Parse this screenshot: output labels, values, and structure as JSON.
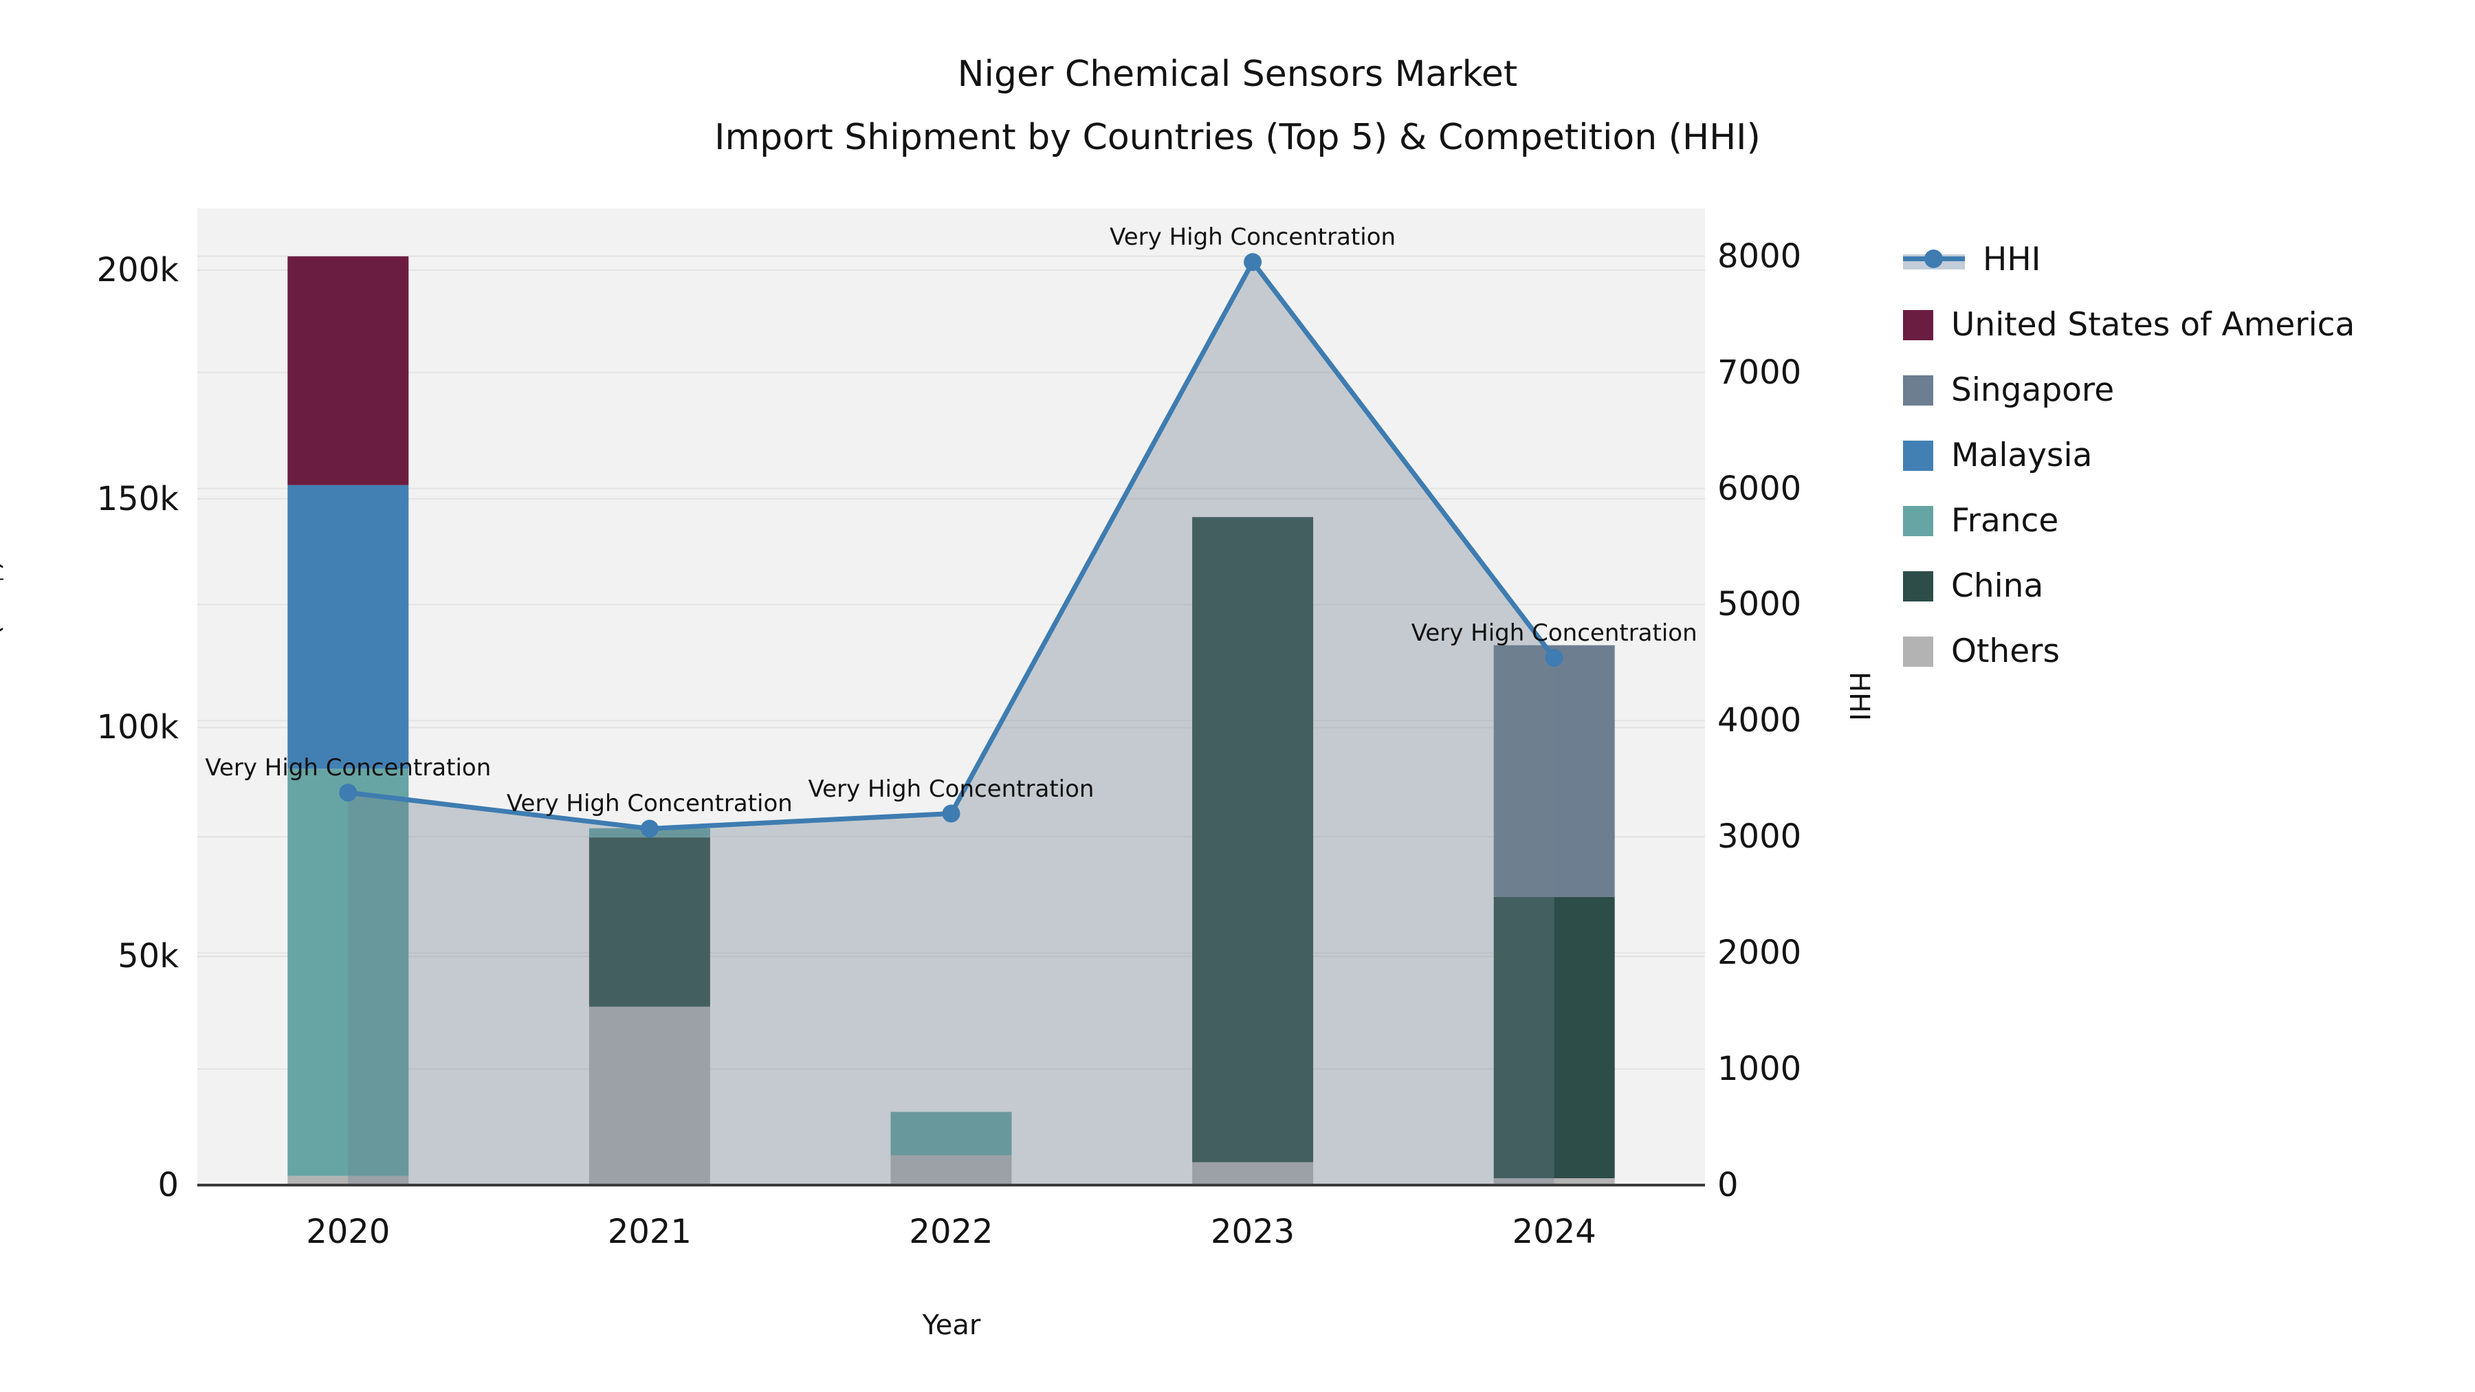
{
  "title": {
    "line1": "Niger Chemical Sensors Market",
    "line2": "Import Shipment by Countries (Top 5) & Competition (HHI)"
  },
  "axes": {
    "x": {
      "label": "Year",
      "ticks": [
        "2020",
        "2021",
        "2022",
        "2023",
        "2024"
      ]
    },
    "y_left": {
      "label": "TRADE VALUE (US$)",
      "ticks": [
        "0",
        "50k",
        "100k",
        "150k",
        "200k"
      ],
      "tick_values": [
        0,
        50000,
        100000,
        150000,
        200000
      ],
      "range": [
        0,
        213500
      ]
    },
    "y_right": {
      "label": "HHI",
      "ticks": [
        "0",
        "1000",
        "2000",
        "3000",
        "4000",
        "5000",
        "6000",
        "7000",
        "8000"
      ],
      "tick_values": [
        0,
        1000,
        2000,
        3000,
        4000,
        5000,
        6000,
        7000,
        8000
      ],
      "range": [
        0,
        8413
      ]
    }
  },
  "legend": [
    {
      "label": "HHI",
      "type": "line",
      "color": "#3e7cb1"
    },
    {
      "label": "United States of America",
      "type": "box",
      "color": "#6b1d41"
    },
    {
      "label": "Singapore",
      "type": "box",
      "color": "#6e7e91"
    },
    {
      "label": "Malaysia",
      "type": "box",
      "color": "#4280b4"
    },
    {
      "label": "France",
      "type": "box",
      "color": "#66a5a4"
    },
    {
      "label": "China",
      "type": "box",
      "color": "#2d4d48"
    },
    {
      "label": "Others",
      "type": "box",
      "color": "#b3b3b3"
    }
  ],
  "chart_data": {
    "type": "bar+line",
    "title": "Niger Chemical Sensors Market — Import Shipment by Countries (Top 5) & Competition (HHI)",
    "xlabel": "Year",
    "ylabel_left": "TRADE VALUE (US$)",
    "ylabel_right": "HHI",
    "categories": [
      "2020",
      "2021",
      "2022",
      "2023",
      "2024"
    ],
    "stack_order": [
      "Others",
      "China",
      "France",
      "Malaysia",
      "Singapore",
      "United States of America"
    ],
    "series": [
      {
        "name": "United States of America",
        "color": "#6b1d41",
        "values": [
          50000,
          0,
          0,
          0,
          0
        ]
      },
      {
        "name": "Singapore",
        "color": "#6e7e91",
        "values": [
          0,
          0,
          0,
          0,
          55000
        ]
      },
      {
        "name": "Malaysia",
        "color": "#4280b4",
        "values": [
          62000,
          0,
          0,
          0,
          0
        ]
      },
      {
        "name": "France",
        "color": "#66a5a4",
        "values": [
          89000,
          2000,
          9500,
          0,
          0
        ]
      },
      {
        "name": "China",
        "color": "#2d4d48",
        "values": [
          0,
          37000,
          0,
          141000,
          61500
        ]
      },
      {
        "name": "Others",
        "color": "#b3b3b3",
        "values": [
          2000,
          39000,
          6500,
          5000,
          1500
        ]
      }
    ],
    "bar_totals": [
      203000,
      78000,
      16000,
      146000,
      118000
    ],
    "hhi": {
      "name": "HHI",
      "values": [
        3380,
        3070,
        3200,
        7950,
        4540
      ],
      "line_color": "#3e7cb1",
      "area_color": "rgba(112,128,144,0.35)"
    },
    "annotations": [
      {
        "text": "Very High Concentration",
        "x": "2020",
        "hhi": 3380
      },
      {
        "text": "Very High Concentration",
        "x": "2021",
        "hhi": 3070
      },
      {
        "text": "Very High Concentration",
        "x": "2022",
        "hhi": 3200
      },
      {
        "text": "Very High Concentration",
        "x": "2023",
        "hhi": 7950
      },
      {
        "text": "Very High Concentration",
        "x": "2024",
        "hhi": 4540
      }
    ],
    "grid": true,
    "legend_position": "right",
    "plot_background": "#f2f2f2"
  }
}
